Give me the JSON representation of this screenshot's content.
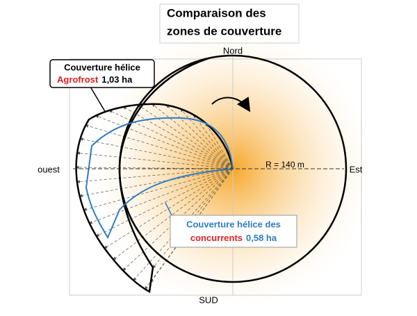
{
  "title": {
    "line1": "Comparaison des",
    "line2": "zones de couverture"
  },
  "compass": {
    "north": "Nord",
    "east": "Est",
    "west": "ouest",
    "south": "SUD"
  },
  "radius_label": "R = 140 m",
  "callouts": {
    "agrofrost": {
      "line1": "Couverture hélice",
      "brand": "Agrofrost",
      "area": "1,03 ha"
    },
    "competitors": {
      "line1": "Couverture hélice des",
      "brand": "concurrents",
      "area": "0,58 ha"
    }
  }
}
